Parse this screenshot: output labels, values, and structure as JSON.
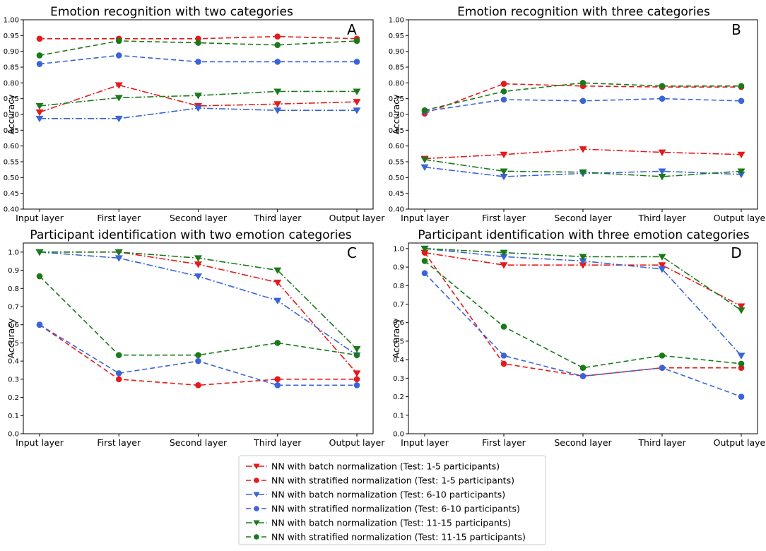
{
  "figure": {
    "x_categories": [
      "Input layer",
      "First layer",
      "Second layer",
      "Third layer",
      "Output layer"
    ],
    "legend": [
      {
        "label": "NN with batch normalization (Test: 1-5 participants)",
        "color": "#e41a1c",
        "marker": "triangle-down",
        "dash": "dash-dot"
      },
      {
        "label": "NN with stratified normalization (Test: 1-5 participants)",
        "color": "#e41a1c",
        "marker": "circle",
        "dash": "dashed"
      },
      {
        "label": "NN with batch normalization (Test: 6-10 participants)",
        "color": "#3a64d8",
        "marker": "triangle-down",
        "dash": "dash-dot"
      },
      {
        "label": "NN with stratified normalization (Test: 6-10 participants)",
        "color": "#3a64d8",
        "marker": "circle",
        "dash": "dashed"
      },
      {
        "label": "NN with batch normalization (Test: 11-15 participants)",
        "color": "#1a7a1a",
        "marker": "triangle-down",
        "dash": "dash-dot"
      },
      {
        "label": "NN with stratified normalization (Test: 11-15 participants)",
        "color": "#1a7a1a",
        "marker": "circle",
        "dash": "dashed"
      }
    ]
  },
  "chart_data": [
    {
      "type": "line",
      "panel": "A",
      "title": "Emotion recognition with two categories",
      "xlabel": "",
      "ylabel": "Accuracy",
      "ylim": [
        0.4,
        1.0
      ],
      "yticks": [
        "0.40",
        "0.45",
        "0.50",
        "0.55",
        "0.60",
        "0.65",
        "0.70",
        "0.75",
        "0.80",
        "0.85",
        "0.90",
        "0.95",
        "1.00"
      ],
      "categories": [
        "Input layer",
        "First layer",
        "Second layer",
        "Third layer",
        "Output layer"
      ],
      "series": [
        {
          "name": "NN with batch normalization (Test: 1-5 participants)",
          "values": [
            0.707,
            0.793,
            0.727,
            0.733,
            0.74
          ]
        },
        {
          "name": "NN with stratified normalization (Test: 1-5 participants)",
          "values": [
            0.94,
            0.94,
            0.94,
            0.947,
            0.94
          ]
        },
        {
          "name": "NN with batch normalization (Test: 6-10 participants)",
          "values": [
            0.687,
            0.687,
            0.72,
            0.713,
            0.713
          ]
        },
        {
          "name": "NN with stratified normalization (Test: 6-10 participants)",
          "values": [
            0.86,
            0.887,
            0.867,
            0.867,
            0.867
          ]
        },
        {
          "name": "NN with batch normalization (Test: 11-15 participants)",
          "values": [
            0.727,
            0.753,
            0.76,
            0.773,
            0.773
          ]
        },
        {
          "name": "NN with stratified normalization (Test: 11-15 participants)",
          "values": [
            0.887,
            0.933,
            0.927,
            0.92,
            0.933
          ]
        }
      ]
    },
    {
      "type": "line",
      "panel": "B",
      "title": "Emotion recognition with three categories",
      "xlabel": "",
      "ylabel": "Accuracy",
      "ylim": [
        0.4,
        1.0
      ],
      "yticks": [
        "0.40",
        "0.45",
        "0.50",
        "0.55",
        "0.60",
        "0.65",
        "0.70",
        "0.75",
        "0.80",
        "0.85",
        "0.90",
        "0.95",
        "1.00"
      ],
      "categories": [
        "Input layer",
        "First layer",
        "Second layer",
        "Third layer",
        "Output layer"
      ],
      "series": [
        {
          "name": "NN with batch normalization (Test: 1-5 participants)",
          "values": [
            0.56,
            0.573,
            0.59,
            0.58,
            0.573
          ]
        },
        {
          "name": "NN with stratified normalization (Test: 1-5 participants)",
          "values": [
            0.703,
            0.797,
            0.79,
            0.787,
            0.787
          ]
        },
        {
          "name": "NN with batch normalization (Test: 6-10 participants)",
          "values": [
            0.533,
            0.503,
            0.513,
            0.52,
            0.51
          ]
        },
        {
          "name": "NN with stratified normalization (Test: 6-10 participants)",
          "values": [
            0.71,
            0.747,
            0.743,
            0.75,
            0.743
          ]
        },
        {
          "name": "NN with batch normalization (Test: 11-15 participants)",
          "values": [
            0.557,
            0.52,
            0.517,
            0.503,
            0.52
          ]
        },
        {
          "name": "NN with stratified normalization (Test: 11-15 participants)",
          "values": [
            0.713,
            0.773,
            0.8,
            0.79,
            0.79
          ]
        }
      ]
    },
    {
      "type": "line",
      "panel": "C",
      "title": "Participant identification with two emotion categories",
      "xlabel": "",
      "ylabel": "Accuracy",
      "ylim": [
        0.0,
        1.05
      ],
      "yticks": [
        "0.0",
        "0.1",
        "0.2",
        "0.3",
        "0.4",
        "0.5",
        "0.6",
        "0.7",
        "0.8",
        "0.9",
        "1.0"
      ],
      "categories": [
        "Input layer",
        "First layer",
        "Second layer",
        "Third layer",
        "Output layer"
      ],
      "series": [
        {
          "name": "NN with batch normalization (Test: 1-5 participants)",
          "values": [
            1.0,
            1.0,
            0.933,
            0.833,
            0.333
          ]
        },
        {
          "name": "NN with stratified normalization (Test: 1-5 participants)",
          "values": [
            0.6,
            0.3,
            0.267,
            0.3,
            0.3
          ]
        },
        {
          "name": "NN with batch normalization (Test: 6-10 participants)",
          "values": [
            1.0,
            0.967,
            0.867,
            0.733,
            0.433
          ]
        },
        {
          "name": "NN with stratified normalization (Test: 6-10 participants)",
          "values": [
            0.6,
            0.333,
            0.4,
            0.267,
            0.267
          ]
        },
        {
          "name": "NN with batch normalization (Test: 11-15 participants)",
          "values": [
            1.0,
            1.0,
            0.967,
            0.9,
            0.467
          ]
        },
        {
          "name": "NN with stratified normalization (Test: 11-15 participants)",
          "values": [
            0.867,
            0.433,
            0.433,
            0.5,
            0.433
          ]
        }
      ]
    },
    {
      "type": "line",
      "panel": "D",
      "title": "Participant identification with three emotion categories",
      "xlabel": "",
      "ylabel": "Accuracy",
      "ylim": [
        0.0,
        1.03
      ],
      "yticks": [
        "0.0",
        "0.1",
        "0.2",
        "0.3",
        "0.4",
        "0.5",
        "0.6",
        "0.7",
        "0.8",
        "0.9",
        "1.0"
      ],
      "categories": [
        "Input layer",
        "First layer",
        "Second layer",
        "Third layer",
        "Output layer"
      ],
      "series": [
        {
          "name": "NN with batch normalization (Test: 1-5 participants)",
          "values": [
            0.978,
            0.911,
            0.911,
            0.911,
            0.689
          ]
        },
        {
          "name": "NN with stratified normalization (Test: 1-5 participants)",
          "values": [
            0.978,
            0.378,
            0.311,
            0.356,
            0.356
          ]
        },
        {
          "name": "NN with batch normalization (Test: 6-10 participants)",
          "values": [
            1.0,
            0.956,
            0.933,
            0.889,
            0.422
          ]
        },
        {
          "name": "NN with stratified normalization (Test: 6-10 participants)",
          "values": [
            0.867,
            0.422,
            0.311,
            0.356,
            0.2
          ]
        },
        {
          "name": "NN with batch normalization (Test: 11-15 participants)",
          "values": [
            1.0,
            0.978,
            0.956,
            0.956,
            0.667
          ]
        },
        {
          "name": "NN with stratified normalization (Test: 11-15 participants)",
          "values": [
            0.933,
            0.578,
            0.356,
            0.422,
            0.378
          ]
        }
      ]
    }
  ]
}
